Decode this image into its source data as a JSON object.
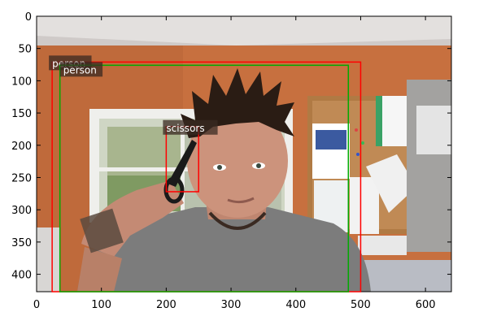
{
  "image": {
    "description_colors": {
      "wall_top": "#c8c4c4",
      "wall": "#c7703f",
      "shirt": "#7e7e7e",
      "skin": "#c9907a",
      "hair": "#2a1c14",
      "corkboard": "#b7834e",
      "window": "#dcdcd8"
    }
  },
  "axes": {
    "x_ticks": [
      "0",
      "100",
      "200",
      "300",
      "400",
      "500",
      "600"
    ],
    "y_ticks": [
      "0",
      "50",
      "100",
      "150",
      "200",
      "250",
      "300",
      "350",
      "400"
    ],
    "x_tick_values": [
      0,
      100,
      200,
      300,
      400,
      500,
      600
    ],
    "y_tick_values": [
      0,
      50,
      100,
      150,
      200,
      250,
      300,
      350,
      400
    ],
    "xlim": [
      0,
      640
    ],
    "ylim": [
      427,
      0
    ]
  },
  "detections": [
    {
      "label": "person",
      "color": "#ff0000",
      "x1": 24,
      "y1": 71,
      "x2": 500,
      "y2": 427
    },
    {
      "label": "person",
      "color": "#00aa00",
      "x1": 36,
      "y1": 76,
      "x2": 481,
      "y2": 427
    },
    {
      "label": "scissors",
      "color": "#ff0000",
      "x1": 200,
      "y1": 171,
      "x2": 250,
      "y2": 272
    }
  ]
}
